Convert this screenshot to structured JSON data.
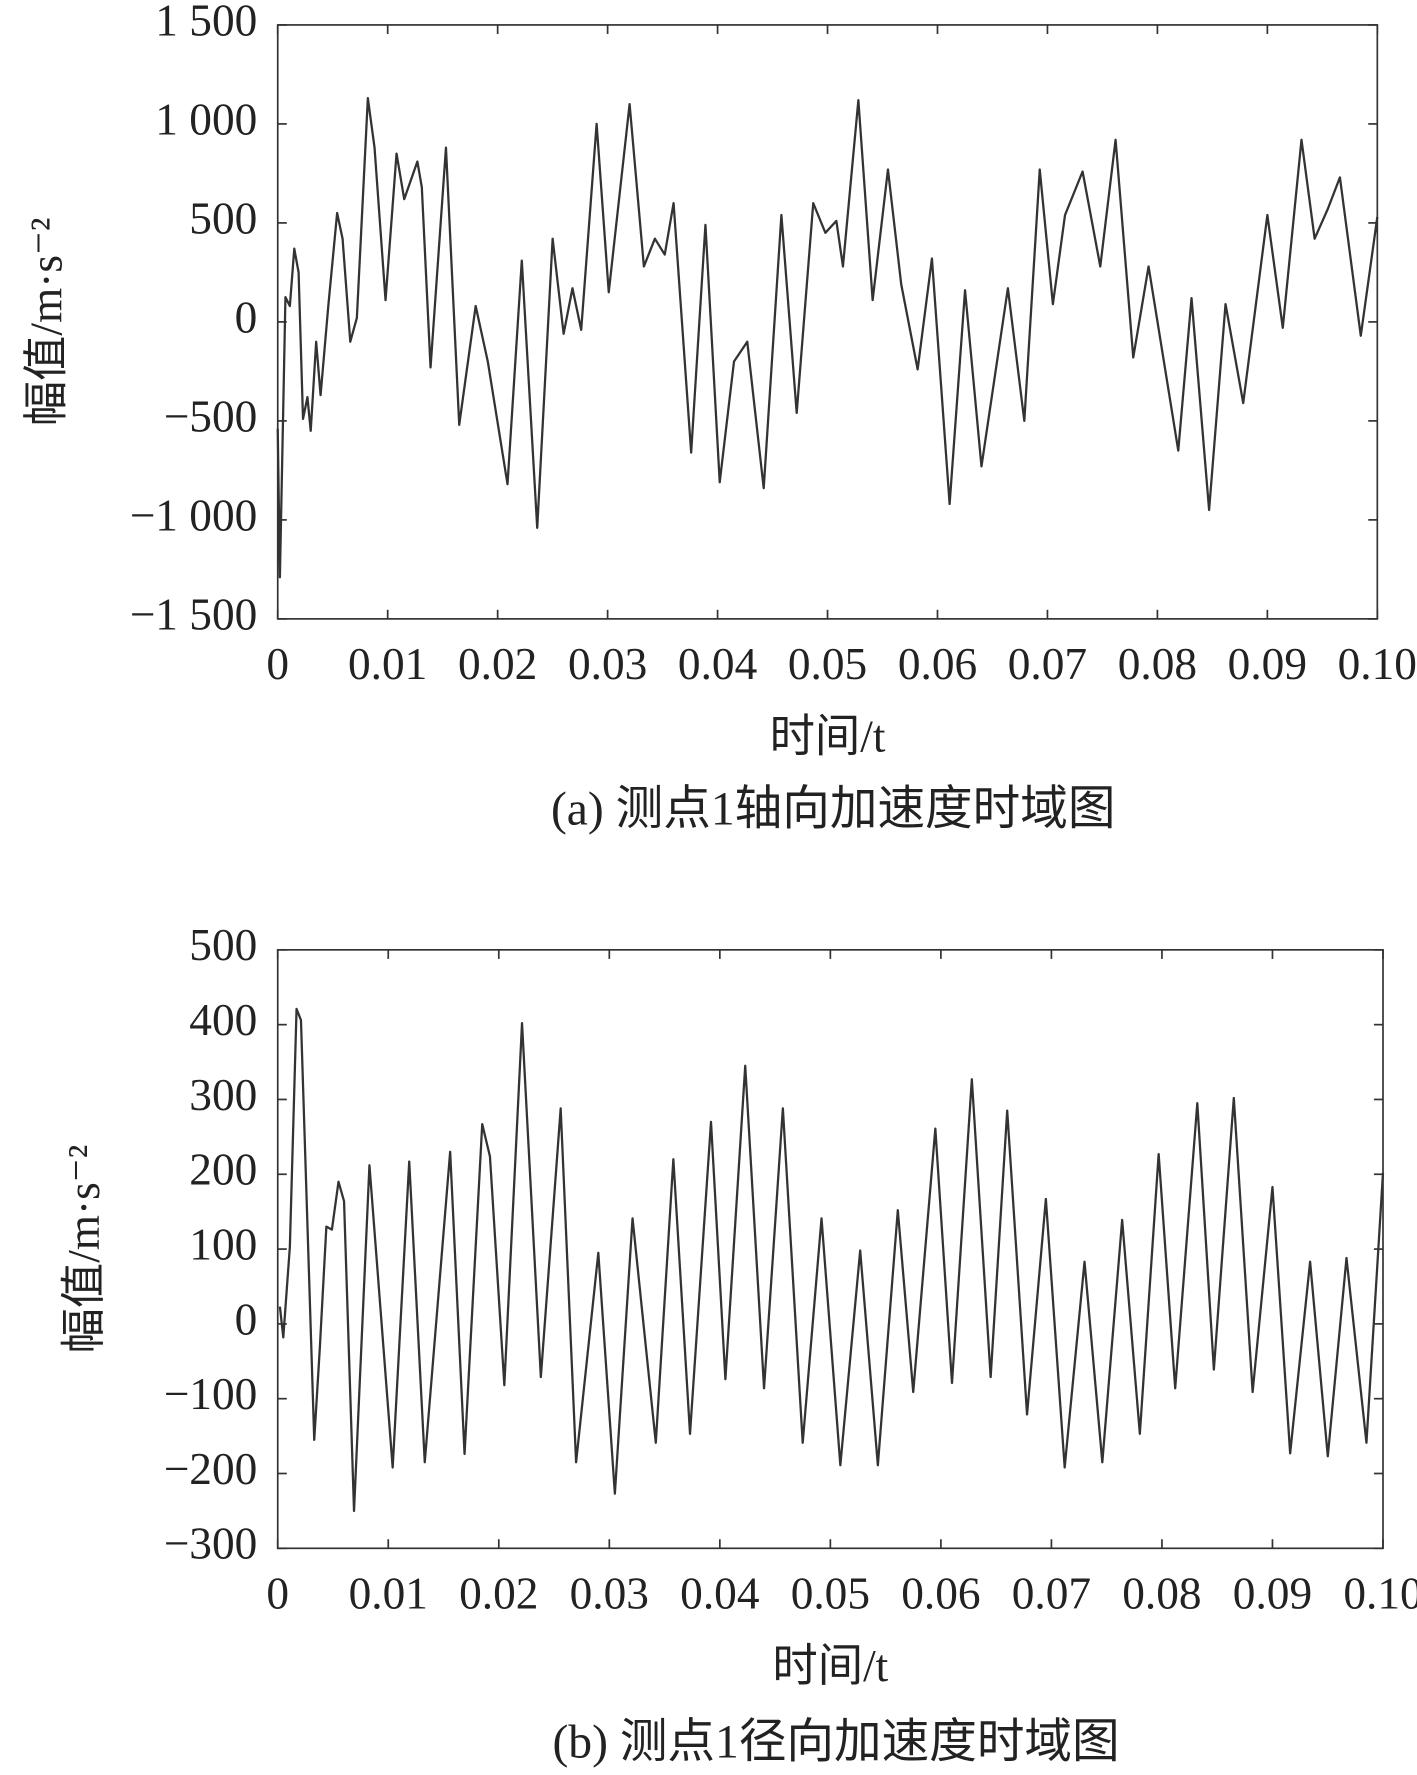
{
  "chart_data": [
    {
      "type": "line",
      "ylabel": "幅值/m·s⁻²",
      "xlabel": "时间/t",
      "caption": "(a) 测点1轴向加速度时域图",
      "xlim": [
        0,
        0.1
      ],
      "xticks": [
        0,
        0.01,
        0.02,
        0.03,
        0.04,
        0.05,
        0.06,
        0.07,
        0.08,
        0.09,
        {
          "value": 0.1,
          "label": "0.10"
        }
      ],
      "ylim": [
        -1500,
        1500
      ],
      "yticks": [
        {
          "value": 1500,
          "label": "1 500"
        },
        {
          "value": 1000,
          "label": "1 000"
        },
        500,
        0,
        {
          "value": -500,
          "label": "−500"
        },
        {
          "value": -1000,
          "label": "−1 000"
        },
        {
          "value": -1500,
          "label": "−1 500"
        }
      ],
      "series": [
        {
          "color": "#333333",
          "x": [
            0,
            0.0002,
            0.0007,
            0.0011,
            0.0015,
            0.0019,
            0.0023,
            0.0027,
            0.003,
            0.0035,
            0.0039,
            0.0046,
            0.0054,
            0.0059,
            0.0066,
            0.0072,
            0.0082,
            0.0088,
            0.0098,
            0.0108,
            0.0115,
            0.0127,
            0.0131,
            0.0139,
            0.0153,
            0.0165,
            0.018,
            0.0191,
            0.0209,
            0.0222,
            0.0236,
            0.025,
            0.026,
            0.0268,
            0.0276,
            0.029,
            0.0301,
            0.032,
            0.0333,
            0.0343,
            0.0352,
            0.036,
            0.0376,
            0.0389,
            0.0402,
            0.0415,
            0.0427,
            0.0442,
            0.0458,
            0.0472,
            0.0487,
            0.0498,
            0.0508,
            0.0514,
            0.0528,
            0.0541,
            0.0555,
            0.0567,
            0.0582,
            0.0595,
            0.0611,
            0.0625,
            0.064,
            0.0664,
            0.0679,
            0.0693,
            0.0705,
            0.0716,
            0.0732,
            0.0748,
            0.0762,
            0.0778,
            0.0792,
            0.0819,
            0.0831,
            0.0847,
            0.0862,
            0.0878,
            0.09,
            0.0914,
            0.0931,
            0.0943,
            0.0955,
            0.0966,
            0.0985,
            0.1
          ],
          "values": [
            -540,
            -1290,
            125,
            80,
            370,
            250,
            -490,
            -380,
            -550,
            -100,
            -370,
            80,
            550,
            420,
            -100,
            20,
            1130,
            880,
            110,
            850,
            620,
            810,
            680,
            -230,
            880,
            -520,
            80,
            -200,
            -820,
            310,
            -1040,
            420,
            -60,
            170,
            -40,
            1000,
            150,
            1100,
            280,
            420,
            340,
            600,
            -660,
            490,
            -810,
            -200,
            -100,
            -840,
            540,
            -460,
            600,
            450,
            510,
            280,
            1120,
            110,
            770,
            190,
            -240,
            320,
            -920,
            160,
            -730,
            170,
            -500,
            770,
            90,
            540,
            760,
            280,
            920,
            -180,
            280,
            -650,
            120,
            -950,
            90,
            -410,
            540,
            -30,
            920,
            420,
            570,
            730,
            -70,
            530
          ]
        }
      ]
    },
    {
      "type": "line",
      "ylabel": "幅值/m·s⁻²",
      "xlabel": "时间/t",
      "caption": "(b) 测点1径向加速度时域图",
      "xlim": [
        0,
        0.1
      ],
      "xticks": [
        0,
        0.01,
        0.02,
        0.03,
        0.04,
        0.05,
        0.06,
        0.07,
        0.08,
        0.09,
        {
          "value": 0.1,
          "label": "0.10"
        }
      ],
      "ylim": [
        -300,
        500
      ],
      "yticks": [
        500,
        400,
        300,
        200,
        100,
        0,
        {
          "value": -100,
          "label": "−100"
        },
        {
          "value": -200,
          "label": "−200"
        },
        {
          "value": -300,
          "label": "−300"
        }
      ],
      "series": [
        {
          "color": "#333333",
          "x": [
            0.0002,
            0.0005,
            0.0011,
            0.0017,
            0.0021,
            0.0033,
            0.0038,
            0.0044,
            0.0049,
            0.0055,
            0.006,
            0.0069,
            0.0083,
            0.0104,
            0.0119,
            0.0133,
            0.0156,
            0.0169,
            0.0185,
            0.0192,
            0.0205,
            0.0221,
            0.0238,
            0.0256,
            0.027,
            0.029,
            0.0305,
            0.0321,
            0.0342,
            0.0358,
            0.0373,
            0.0392,
            0.0405,
            0.0423,
            0.044,
            0.0457,
            0.0475,
            0.0492,
            0.0509,
            0.0527,
            0.0543,
            0.0561,
            0.0575,
            0.0595,
            0.061,
            0.0628,
            0.0645,
            0.066,
            0.0678,
            0.0695,
            0.0712,
            0.073,
            0.0746,
            0.0764,
            0.078,
            0.0797,
            0.0812,
            0.0832,
            0.0847,
            0.0865,
            0.0882,
            0.09,
            0.0916,
            0.0934,
            0.095,
            0.0967,
            0.0985,
            0.1
          ],
          "values": [
            23,
            -18,
            103,
            421,
            406,
            -155,
            -33,
            130,
            126,
            190,
            164,
            -250,
            212,
            -192,
            217,
            -185,
            230,
            -174,
            267,
            224,
            -82,
            402,
            -71,
            288,
            -185,
            95,
            -227,
            141,
            -159,
            220,
            -147,
            270,
            -74,
            345,
            -86,
            288,
            -159,
            141,
            -189,
            98,
            -189,
            152,
            -91,
            261,
            -79,
            327,
            -71,
            285,
            -121,
            167,
            -192,
            83,
            -185,
            139,
            -147,
            227,
            -86,
            295,
            -61,
            302,
            -91,
            183,
            -173,
            83,
            -177,
            88,
            -159,
            202
          ]
        }
      ]
    }
  ]
}
